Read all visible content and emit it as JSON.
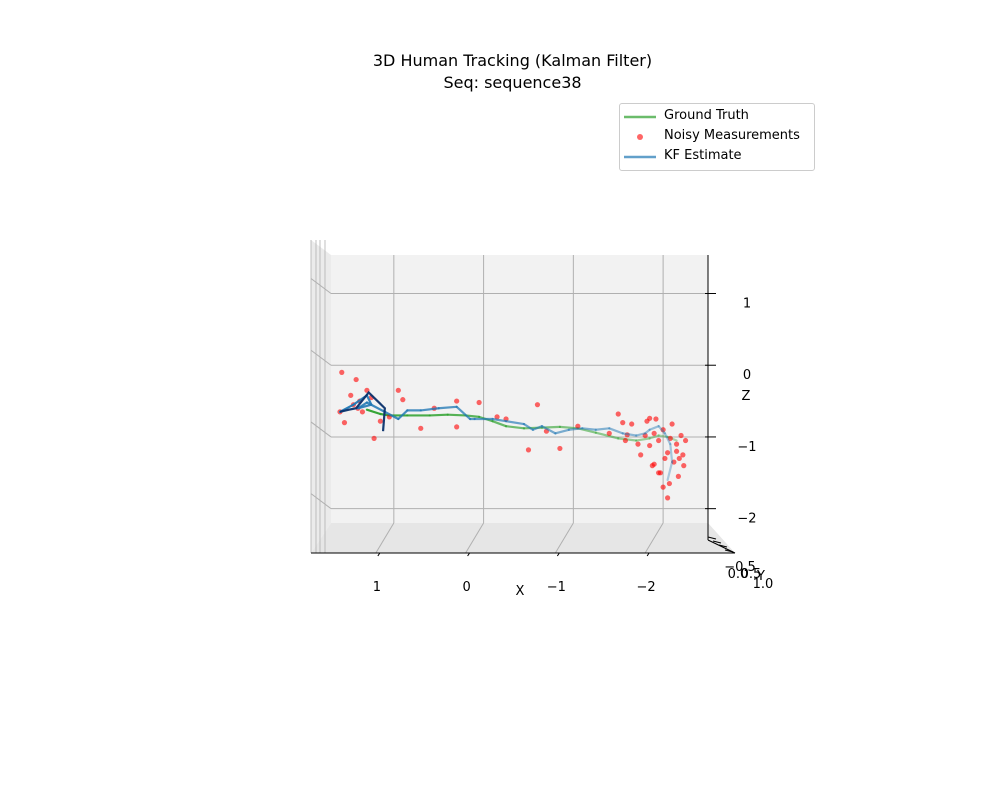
{
  "chart_data": {
    "type": "line",
    "title": "3D Human Tracking (Kalman Filter)",
    "subtitle": "Seq: sequence38",
    "xlabel": "X",
    "ylabel": "Y",
    "zlabel": "Z",
    "xlim": [
      1.7,
      -2.5
    ],
    "zlim": [
      -2.2,
      1.3
    ],
    "grid": true,
    "legend_position": "top-right",
    "x_ticks": [
      "1",
      "0",
      "−1",
      "−2"
    ],
    "y_ticks": [
      "−0.5",
      "0.0",
      "0.5",
      "1.0"
    ],
    "z_ticks": [
      "1",
      "0",
      "−1",
      "−2"
    ],
    "legend": [
      "Ground Truth",
      "Noisy Measurements",
      "KF Estimate"
    ],
    "colors": {
      "ground_truth": "#2ca02c",
      "measurements": "#ff0000",
      "kf_estimate": "#1f77b4"
    },
    "series": [
      {
        "name": "Ground Truth",
        "x": [
          1.3,
          1.15,
          1.05,
          0.85,
          0.6,
          0.4,
          0.2,
          0.05,
          -0.1,
          -0.25,
          -0.45,
          -0.65,
          -0.85,
          -1.05,
          -1.25,
          -1.5,
          -1.7,
          -1.85,
          -1.95,
          -2.05,
          -2.15
        ],
        "z": [
          -0.62,
          -0.68,
          -0.7,
          -0.7,
          -0.7,
          -0.69,
          -0.7,
          -0.72,
          -0.78,
          -0.85,
          -0.88,
          -0.87,
          -0.86,
          -0.88,
          -0.94,
          -1.02,
          -1.05,
          -1.02,
          -0.98,
          -1.0,
          -1.05
        ]
      },
      {
        "name": "Noisy Measurements",
        "x": [
          1.6,
          1.58,
          1.55,
          1.48,
          1.45,
          1.42,
          1.4,
          1.38,
          1.35,
          1.3,
          1.25,
          1.22,
          1.15,
          1.05,
          0.95,
          0.9,
          0.7,
          0.55,
          0.3,
          0.3,
          0.05,
          -0.15,
          -0.25,
          -0.5,
          -0.6,
          -0.7,
          -0.85,
          -1.05,
          -1.4,
          -1.5,
          -1.55,
          -1.58,
          -1.6,
          -1.65,
          -1.72,
          -1.75,
          -1.8,
          -1.82,
          -1.85,
          -1.88,
          -1.9,
          -1.92,
          -1.95,
          -1.97,
          -2.0,
          -2.02,
          -2.05,
          -2.07,
          -2.1,
          -2.12,
          -2.15,
          -2.17,
          -2.2,
          -2.22,
          -2.25,
          -1.95,
          -2.05,
          -1.9,
          -2.15,
          -2.0,
          -1.85,
          -2.08,
          -2.18,
          -2.23
        ],
        "z": [
          -0.65,
          -0.1,
          -0.8,
          -0.42,
          -0.55,
          -0.2,
          -0.6,
          -0.5,
          -0.65,
          -0.35,
          -0.45,
          -1.02,
          -0.78,
          -0.72,
          -0.35,
          -0.48,
          -0.88,
          -0.6,
          -0.5,
          -0.86,
          -0.52,
          -0.72,
          -0.75,
          -1.18,
          -0.55,
          -0.92,
          -1.16,
          -0.85,
          -0.95,
          -0.68,
          -0.8,
          -1.05,
          -0.97,
          -0.82,
          -1.1,
          -1.25,
          -0.98,
          -0.78,
          -1.12,
          -1.4,
          -0.95,
          -0.75,
          -1.05,
          -1.5,
          -0.9,
          -1.3,
          -1.85,
          -1.65,
          -0.82,
          -1.35,
          -1.2,
          -1.55,
          -0.98,
          -1.25,
          -1.05,
          -1.5,
          -1.22,
          -1.38,
          -1.1,
          -1.7,
          -0.74,
          -1.02,
          -1.3,
          -1.4
        ]
      },
      {
        "name": "KF Estimate",
        "x": [
          1.6,
          1.45,
          1.3,
          1.25,
          1.4,
          1.3,
          1.1,
          0.95,
          0.85,
          0.7,
          0.5,
          0.3,
          0.15,
          0.1,
          -0.1,
          -0.25,
          -0.45,
          -0.55,
          -0.65,
          -0.8,
          -0.95,
          -1.1,
          -1.25,
          -1.4,
          -1.55,
          -1.7,
          -1.8,
          -1.85,
          -1.95,
          -2.02,
          -2.08,
          -2.1,
          -2.05
        ],
        "z": [
          -0.65,
          -0.55,
          -0.42,
          -0.55,
          -0.6,
          -0.52,
          -0.65,
          -0.75,
          -0.63,
          -0.63,
          -0.6,
          -0.58,
          -0.75,
          -0.75,
          -0.75,
          -0.78,
          -0.82,
          -0.9,
          -0.85,
          -0.95,
          -0.9,
          -0.88,
          -0.9,
          -0.88,
          -0.95,
          -0.98,
          -0.95,
          -0.9,
          -0.85,
          -0.95,
          -1.1,
          -1.35,
          -1.6
        ]
      }
    ]
  }
}
